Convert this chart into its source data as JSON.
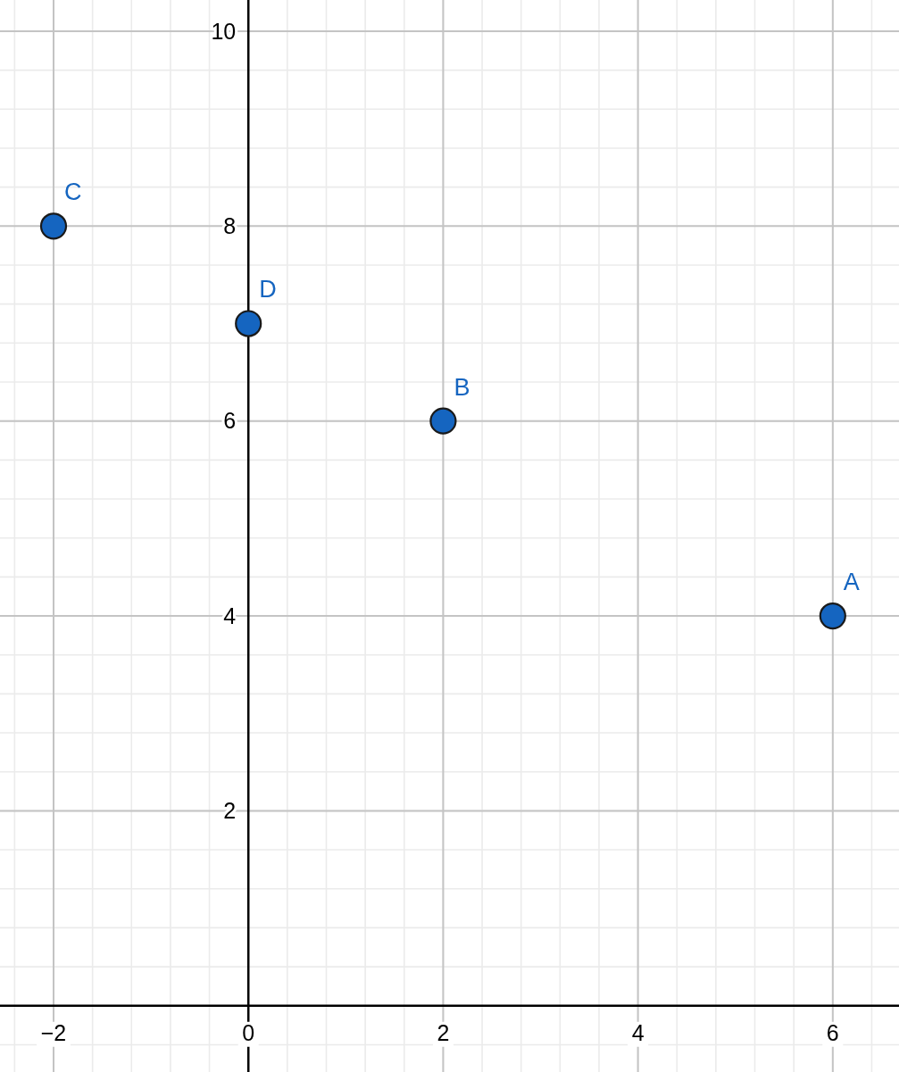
{
  "chart_data": {
    "type": "scatter",
    "series": [
      {
        "color": "#1565c0",
        "x": [
          6,
          2,
          -2,
          0
        ],
        "values": [
          4,
          6,
          8,
          7
        ]
      }
    ],
    "marker": "circle",
    "annotations": [
      {
        "text": "A",
        "x": 6,
        "y": 4
      },
      {
        "text": "B",
        "x": 2,
        "y": 6
      },
      {
        "text": "C",
        "x": -2,
        "y": 8
      },
      {
        "text": "D",
        "x": 0,
        "y": 7
      }
    ],
    "xlim": [
      -2.55,
      6.68
    ],
    "ylim": [
      -0.68,
      10.32
    ],
    "xticks": [
      {
        "value": -2,
        "label": "−2"
      },
      0,
      2,
      4,
      6
    ],
    "yticks": [
      2,
      4,
      6,
      8,
      10
    ],
    "grid": true
  }
}
